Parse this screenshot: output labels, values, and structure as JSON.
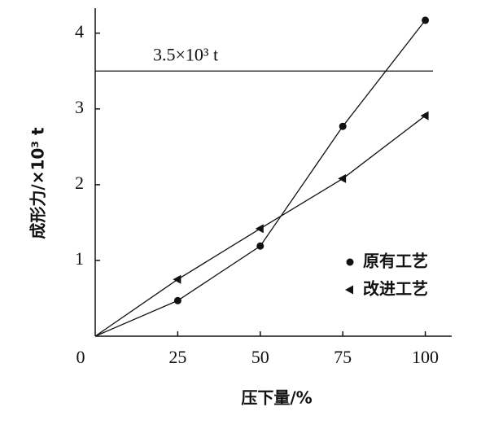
{
  "chart_data": {
    "type": "line",
    "x_label": "压下量/%",
    "y_label": "成形力/×10³ t",
    "x": [
      0,
      25,
      50,
      75,
      100
    ],
    "series": [
      {
        "name": "原有工艺",
        "color": "#111111",
        "marker": "circle",
        "values": [
          0,
          0.47,
          1.19,
          2.77,
          4.17
        ]
      },
      {
        "name": "改进工艺",
        "color": "#111111",
        "marker": "triangle-left",
        "values": [
          0,
          0.75,
          1.42,
          2.08,
          2.91
        ]
      }
    ],
    "xlim": [
      0,
      108
    ],
    "ylim": [
      0,
      4.33
    ],
    "xticks": [
      0,
      25,
      50,
      75,
      100
    ],
    "yticks": [
      1,
      2,
      3,
      4
    ],
    "reference_line": {
      "value": 3.5,
      "label": "3.5×10³ t"
    },
    "legend": "lower-right"
  }
}
